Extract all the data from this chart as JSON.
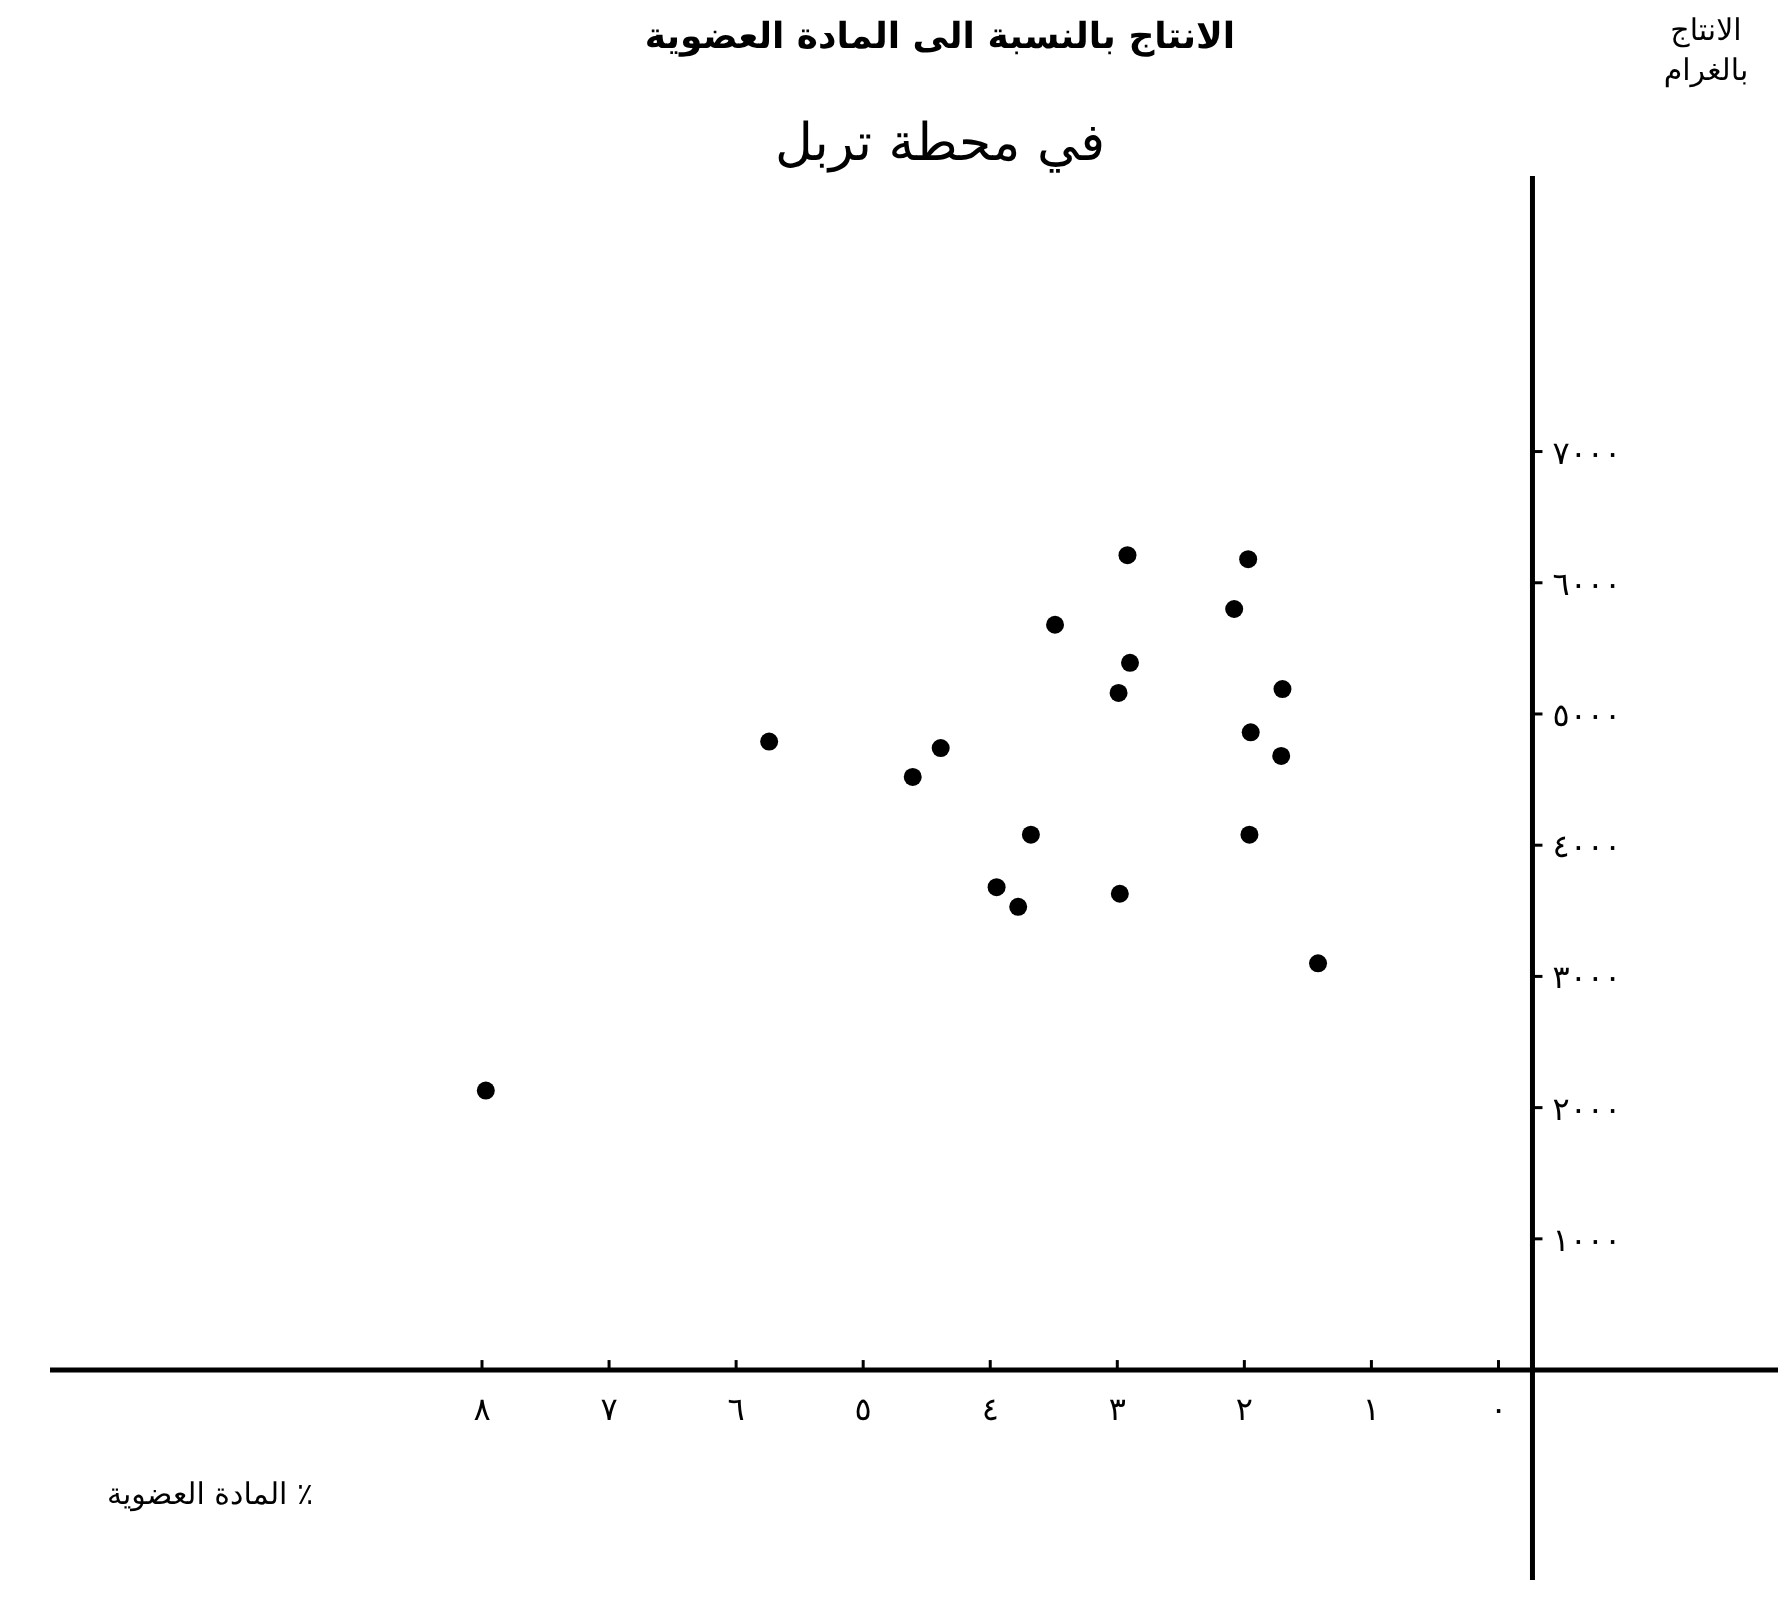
{
  "chart_data": {
    "type": "scatter",
    "title": "الانتاج بالنسبة الى المادة العضوية",
    "subtitle": "في محطة تربل",
    "xlabel": "المادة العضوية ٪",
    "ylabel": "الانتاج بالغرام",
    "x": [
      2.92,
      1.97,
      2.08,
      3.49,
      2.9,
      2.99,
      1.7,
      5.74,
      4.39,
      4.61,
      1.95,
      1.71,
      3.68,
      1.96,
      3.95,
      3.78,
      2.98,
      1.42,
      7.97
    ],
    "values": [
      6210,
      6180,
      5800,
      5680,
      5390,
      5160,
      5190,
      4790,
      4740,
      4520,
      4860,
      4680,
      4080,
      4080,
      3680,
      3530,
      3630,
      3100,
      2130
    ],
    "color": "#000000",
    "marker": "circle",
    "xlim": [
      11.4,
      -2.2
    ],
    "ylim": [
      -1600,
      9100
    ],
    "xticks": [
      {
        "value": 0,
        "label": "٠"
      },
      {
        "value": 1,
        "label": "١"
      },
      {
        "value": 2,
        "label": "٢"
      },
      {
        "value": 3,
        "label": "٣"
      },
      {
        "value": 4,
        "label": "٤"
      },
      {
        "value": 5,
        "label": "٥"
      },
      {
        "value": 6,
        "label": "٦"
      },
      {
        "value": 7,
        "label": "٧"
      },
      {
        "value": 8,
        "label": "٨"
      }
    ],
    "yticks": [
      {
        "value": 1000,
        "label": "١٠٠٠"
      },
      {
        "value": 2000,
        "label": "٢٠٠٠"
      },
      {
        "value": 3000,
        "label": "٣٠٠٠"
      },
      {
        "value": 4000,
        "label": "٤٠٠٠"
      },
      {
        "value": 5000,
        "label": "٥٠٠٠"
      },
      {
        "value": 6000,
        "label": "٦٠٠٠"
      },
      {
        "value": 7000,
        "label": "٧٠٠٠"
      }
    ]
  }
}
